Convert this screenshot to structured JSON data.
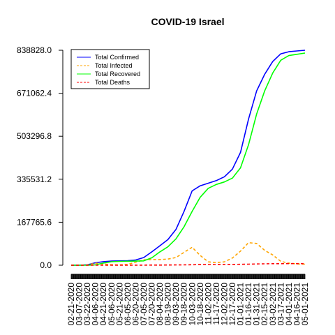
{
  "chart_data": {
    "type": "line",
    "title": "COVID-19 Israel",
    "xlabel": "",
    "ylabel": "",
    "ylim": [
      0,
      838828.0
    ],
    "yticks": [
      "0.0",
      "167765.6",
      "335531.2",
      "503296.8",
      "671062.4",
      "838828.0"
    ],
    "ytick_values": [
      0,
      167765.6,
      335531.2,
      503296.8,
      671062.4,
      838828.0
    ],
    "xlim": [
      "02-21-2020",
      "05-01-2021"
    ],
    "xtick_labels": [
      "02-21-2020",
      "03-07-2020",
      "03-22-2020",
      "04-06-2020",
      "04-21-2020",
      "05-06-2020",
      "05-21-2020",
      "06-05-2020",
      "06-20-2020",
      "07-05-2020",
      "07-20-2020",
      "08-04-2020",
      "08-19-2020",
      "09-03-2020",
      "09-18-2020",
      "10-03-2020",
      "10-18-2020",
      "11-02-2020",
      "11-17-2020",
      "12-02-2020",
      "12-17-2020",
      "01-01-2021",
      "01-16-2021",
      "01-31-2021",
      "02-15-2021",
      "03-02-2021",
      "03-17-2021",
      "04-01-2021",
      "04-16-2021",
      "05-01-2021"
    ],
    "legend_position": "top-left",
    "grid": false,
    "series": [
      {
        "name": "Total Confirmed",
        "color": "#0000ff",
        "dash": "solid",
        "x": [
          "02-21-2020",
          "03-07-2020",
          "03-22-2020",
          "04-06-2020",
          "04-21-2020",
          "05-06-2020",
          "05-21-2020",
          "06-05-2020",
          "06-20-2020",
          "07-05-2020",
          "07-20-2020",
          "08-04-2020",
          "08-19-2020",
          "09-03-2020",
          "09-18-2020",
          "10-03-2020",
          "10-18-2020",
          "11-02-2020",
          "11-17-2020",
          "12-02-2020",
          "12-17-2020",
          "01-01-2021",
          "01-16-2021",
          "01-31-2021",
          "02-15-2021",
          "03-02-2021",
          "03-17-2021",
          "04-01-2021",
          "04-16-2021",
          "05-01-2021"
        ],
        "values": [
          0,
          0,
          1500,
          9500,
          14000,
          16000,
          16800,
          17500,
          20500,
          30000,
          52000,
          76000,
          100000,
          140000,
          210000,
          290000,
          310000,
          320000,
          330000,
          345000,
          375000,
          440000,
          570000,
          680000,
          745000,
          795000,
          825000,
          833000,
          836000,
          838828
        ]
      },
      {
        "name": "Total Infected",
        "color": "#ffa500",
        "dash": "dashed",
        "x": [
          "02-21-2020",
          "03-07-2020",
          "03-22-2020",
          "04-06-2020",
          "04-21-2020",
          "05-06-2020",
          "05-21-2020",
          "06-05-2020",
          "06-20-2020",
          "07-05-2020",
          "07-20-2020",
          "08-04-2020",
          "08-19-2020",
          "09-03-2020",
          "09-18-2020",
          "10-03-2020",
          "10-18-2020",
          "11-02-2020",
          "11-17-2020",
          "12-02-2020",
          "12-17-2020",
          "01-01-2021",
          "01-16-2021",
          "01-31-2021",
          "02-15-2021",
          "03-02-2021",
          "03-17-2021",
          "04-01-2021",
          "04-16-2021",
          "05-01-2021"
        ],
        "values": [
          0,
          0,
          1200,
          8000,
          5000,
          2000,
          1000,
          3000,
          12000,
          21000,
          22000,
          22000,
          24000,
          30000,
          50000,
          70000,
          38000,
          13000,
          10000,
          13000,
          28000,
          55000,
          88000,
          85000,
          58000,
          40000,
          15000,
          8000,
          5000,
          4000
        ]
      },
      {
        "name": "Total Recovered",
        "color": "#00ff00",
        "dash": "solid",
        "x": [
          "02-21-2020",
          "03-07-2020",
          "03-22-2020",
          "04-06-2020",
          "04-21-2020",
          "05-06-2020",
          "05-21-2020",
          "06-05-2020",
          "06-20-2020",
          "07-05-2020",
          "07-20-2020",
          "08-04-2020",
          "08-19-2020",
          "09-03-2020",
          "09-18-2020",
          "10-03-2020",
          "10-18-2020",
          "11-02-2020",
          "11-17-2020",
          "12-02-2020",
          "12-17-2020",
          "01-01-2021",
          "01-16-2021",
          "01-31-2021",
          "02-15-2021",
          "03-02-2021",
          "03-17-2021",
          "04-01-2021",
          "04-16-2021",
          "05-01-2021"
        ],
        "values": [
          0,
          0,
          100,
          1300,
          8500,
          13500,
          15000,
          15500,
          16000,
          17000,
          29000,
          52000,
          72000,
          103000,
          150000,
          210000,
          265000,
          300000,
          315000,
          325000,
          340000,
          380000,
          470000,
          590000,
          680000,
          750000,
          800000,
          818000,
          823000,
          828000
        ]
      },
      {
        "name": "Total Deaths",
        "color": "#ff0000",
        "dash": "dashed",
        "x": [
          "02-21-2020",
          "03-07-2020",
          "03-22-2020",
          "04-06-2020",
          "04-21-2020",
          "05-06-2020",
          "05-21-2020",
          "06-05-2020",
          "06-20-2020",
          "07-05-2020",
          "07-20-2020",
          "08-04-2020",
          "08-19-2020",
          "09-03-2020",
          "09-18-2020",
          "10-03-2020",
          "10-18-2020",
          "11-02-2020",
          "11-17-2020",
          "12-02-2020",
          "12-17-2020",
          "01-01-2021",
          "01-16-2021",
          "01-31-2021",
          "02-15-2021",
          "03-02-2021",
          "03-17-2021",
          "04-01-2021",
          "04-16-2021",
          "05-01-2021"
        ],
        "values": [
          0,
          0,
          0,
          60,
          170,
          240,
          270,
          300,
          310,
          350,
          450,
          600,
          800,
          1100,
          1400,
          1800,
          2200,
          2600,
          2800,
          3000,
          3200,
          3500,
          4000,
          4900,
          5400,
          5900,
          6100,
          6300,
          6350,
          6360
        ]
      }
    ]
  }
}
